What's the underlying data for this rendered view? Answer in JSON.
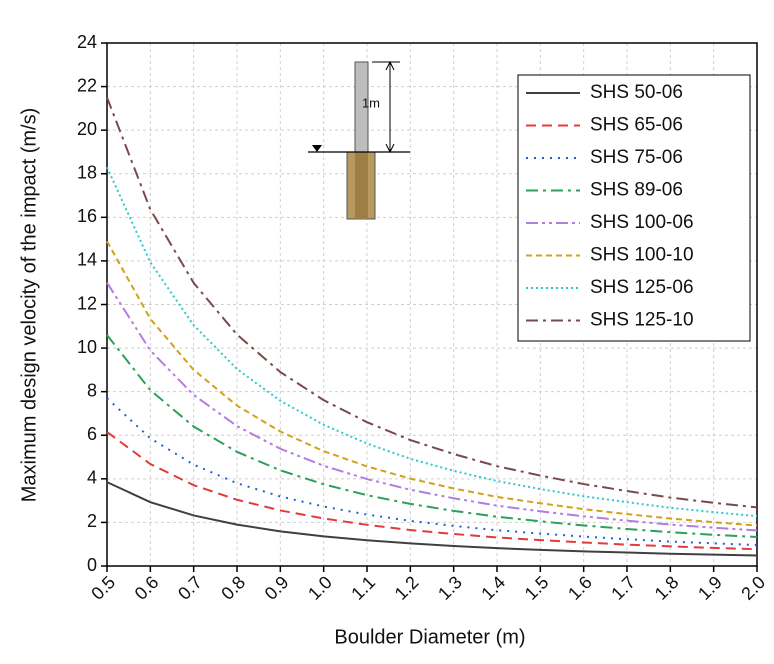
{
  "chart_data": {
    "type": "line",
    "x_label": "Boulder Diameter (m)",
    "y_label": "Maximum design velocity of the impact (m/s)",
    "annotation": "1m",
    "x": [
      0.5,
      0.6,
      0.7,
      0.8,
      0.9,
      1.0,
      1.1,
      1.2,
      1.3,
      1.4,
      1.5,
      1.6,
      1.7,
      1.8,
      1.9,
      2.0
    ],
    "xlim": [
      0.5,
      2.0
    ],
    "xticks": [
      0.5,
      0.6,
      0.7,
      0.8,
      0.9,
      {
        "value": 1.0,
        "label": "1.0"
      },
      1.1,
      1.2,
      1.3,
      1.4,
      1.5,
      1.6,
      1.7,
      1.8,
      1.9,
      {
        "value": 2.0,
        "label": "2.0"
      }
    ],
    "ylim": [
      0,
      24
    ],
    "yticks": [
      0,
      2,
      4,
      6,
      8,
      10,
      12,
      14,
      16,
      18,
      20,
      22,
      24
    ],
    "grid": true,
    "legend": "upper right",
    "series": [
      {
        "name": "SHS 50-06",
        "color": "#404040",
        "dash": "solid",
        "values": [
          3.85,
          2.93,
          2.32,
          1.9,
          1.59,
          1.36,
          1.18,
          1.04,
          0.92,
          0.82,
          0.74,
          0.67,
          0.62,
          0.56,
          0.52,
          0.48
        ]
      },
      {
        "name": "SHS 65-06",
        "color": "#e03c3c",
        "dash": "dashed",
        "values": [
          6.15,
          4.68,
          3.71,
          3.04,
          2.55,
          2.18,
          1.89,
          1.65,
          1.47,
          1.31,
          1.19,
          1.08,
          0.98,
          0.9,
          0.83,
          0.77
        ]
      },
      {
        "name": "SHS 75-06",
        "color": "#1f5fd6",
        "dash": "dotted",
        "values": [
          7.7,
          5.86,
          4.65,
          3.8,
          3.19,
          2.73,
          2.36,
          2.07,
          1.84,
          1.64,
          1.49,
          1.35,
          1.23,
          1.12,
          1.04,
          0.96
        ]
      },
      {
        "name": "SHS 89-06",
        "color": "#2ca05a",
        "dash": "dashdot",
        "values": [
          10.6,
          8.07,
          6.4,
          5.24,
          4.39,
          3.75,
          3.25,
          2.85,
          2.53,
          2.26,
          2.05,
          1.86,
          1.7,
          1.55,
          1.43,
          1.33
        ]
      },
      {
        "name": "SHS 100-06",
        "color": "#b27de0",
        "dash": "dashdotdot",
        "values": [
          13.0,
          9.89,
          7.85,
          6.42,
          5.38,
          4.6,
          3.99,
          3.5,
          3.11,
          2.77,
          2.51,
          2.28,
          2.08,
          1.9,
          1.76,
          1.63
        ]
      },
      {
        "name": "SHS 100-10",
        "color": "#d4a017",
        "dash": "shortdash",
        "values": [
          14.9,
          11.34,
          9.0,
          7.36,
          6.17,
          5.27,
          4.57,
          4.01,
          3.56,
          3.17,
          2.88,
          2.61,
          2.38,
          2.18,
          2.01,
          1.86
        ]
      },
      {
        "name": "SHS 125-06",
        "color": "#2bc8d0",
        "dash": "shortdot",
        "values": [
          18.3,
          13.93,
          11.05,
          9.04,
          7.58,
          6.48,
          5.62,
          4.92,
          4.37,
          3.9,
          3.53,
          3.2,
          2.93,
          2.67,
          2.47,
          2.29
        ]
      },
      {
        "name": "SHS 125-10",
        "color": "#7a4a4a",
        "dash": "dashdot",
        "values": [
          21.5,
          16.36,
          12.99,
          10.62,
          8.9,
          7.61,
          6.6,
          5.78,
          5.14,
          4.58,
          4.15,
          3.76,
          3.44,
          3.14,
          2.9,
          2.69
        ]
      }
    ]
  }
}
